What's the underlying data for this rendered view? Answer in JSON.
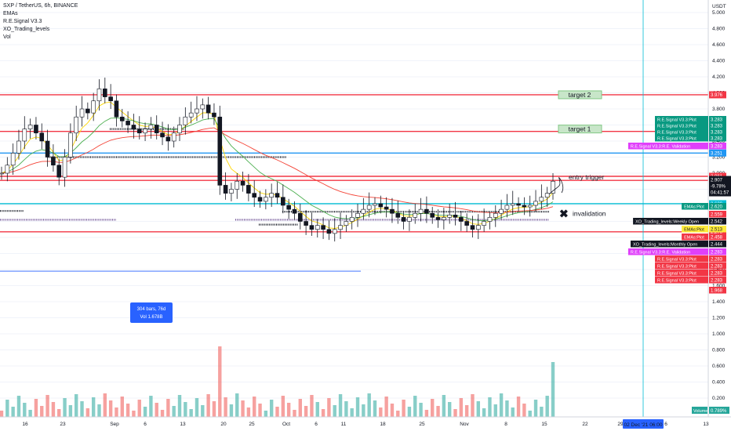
{
  "legend": {
    "title": "SXP / TetherUS, 6h, BINANCE",
    "indicators": [
      "EMAs",
      "R.E.Signal V3.3",
      "XO_Trading_levels",
      "Vol"
    ]
  },
  "currency": "USDT",
  "chart_data": {
    "type": "candlestick",
    "symbol": "SXP / TetherUS",
    "interval": "6h",
    "exchange": "BINANCE",
    "ylim": [
      0.0,
      5.1
    ],
    "y_ticks": [
      "5.000",
      "4.800",
      "4.600",
      "4.400",
      "4.200",
      "4.000",
      "3.800",
      "3.600",
      "3.400",
      "3.200",
      "3.000",
      "2.800",
      "2.600",
      "2.400",
      "2.200",
      "2.000",
      "1.800",
      "1.600",
      "1.400",
      "1.200",
      "1.000",
      "0.800",
      "0.600",
      "0.400",
      "0.200"
    ],
    "x_ticks": [
      "16",
      "23",
      "Sep",
      "6",
      "13",
      "20",
      "25",
      "Oct",
      "6",
      "11",
      "18",
      "25",
      "Nov",
      "8",
      "15",
      "22",
      "29",
      "6",
      "13"
    ],
    "last_price": {
      "value": "2.907",
      "change": "-9.78%",
      "countdown": "04:41:57"
    },
    "levels": [
      {
        "price": 3.976,
        "label": "3.976",
        "color": "#f23645",
        "kind": "target 2"
      },
      {
        "price": 3.52,
        "label": "3.520",
        "color": "#f23645"
      },
      {
        "price": 3.251,
        "label": "3.251",
        "color": "#2196f3"
      },
      {
        "price": 2.961,
        "label": "2.961",
        "color": "#f23645"
      },
      {
        "price": 2.91,
        "label": "2.910",
        "color": "#f23645"
      },
      {
        "price": 2.62,
        "label": "2.620",
        "color": "#00bcd4"
      },
      {
        "price": 2.27,
        "label": "2.270",
        "color": "#f23645"
      }
    ],
    "price_tags": [
      {
        "name": "R.E.Signal V3.3:Plot",
        "value": "3.283",
        "color": "#089981"
      },
      {
        "name": "R.E.Signal V3.3:Plot",
        "value": "3.283",
        "color": "#089981"
      },
      {
        "name": "R.E.Signal V3.3:Plot",
        "value": "3.283",
        "color": "#089981"
      },
      {
        "name": "R.E.Signal V3.3:Plot",
        "value": "3.283",
        "color": "#089981"
      },
      {
        "name": "R.E.Signal V3.3:R.E. Validation",
        "value": "3.283",
        "color": "#e040fb"
      },
      {
        "name": "EMAs:Plot",
        "value": "2.620",
        "color": "#089981"
      },
      {
        "name": "",
        "value": "2.559",
        "color": "#f23645"
      },
      {
        "name": "XO_Trading_levels:Weekly Open",
        "value": "2.542",
        "color": "#131722"
      },
      {
        "name": "EMAs:Plot",
        "value": "2.513",
        "color": "#ffeb3b"
      },
      {
        "name": "EMAs:Plot",
        "value": "2.458",
        "color": "#f23645"
      },
      {
        "name": "XO_Trading_levels:Monthly Open",
        "value": "2.444",
        "color": "#131722"
      },
      {
        "name": "R.E.Signal V3.3:R.E. Validation",
        "value": "2.283",
        "color": "#e040fb"
      },
      {
        "name": "R.E.Signal V3.3:Plot",
        "value": "2.283",
        "color": "#f23645"
      },
      {
        "name": "R.E.Signal V3.3:Plot",
        "value": "2.283",
        "color": "#f23645"
      },
      {
        "name": "R.E.Signal V3.3:Plot",
        "value": "2.283",
        "color": "#f23645"
      },
      {
        "name": "R.E.Signal V3.3:Plot",
        "value": "2.283",
        "color": "#f23645"
      },
      {
        "name": "",
        "value": "1.968",
        "color": "#f23645"
      }
    ],
    "annotations": [
      {
        "text": "target 2",
        "price": 3.976
      },
      {
        "text": "target 1",
        "price": 3.55
      },
      {
        "text": "entry trigger",
        "price": 2.92
      },
      {
        "text": "invalidation",
        "price": 2.5
      }
    ],
    "measure": {
      "bars": "304 bars, 76d",
      "volume": "Vol 1.678B"
    },
    "volume_label": "Volume",
    "volume_value": "0.789%",
    "crosshair_time": "02 Dec '21   06:00",
    "close_series": [
      3.0,
      3.1,
      3.25,
      3.4,
      3.55,
      3.6,
      3.5,
      3.4,
      3.2,
      3.1,
      2.95,
      3.2,
      3.5,
      3.7,
      3.8,
      3.75,
      3.9,
      4.05,
      3.95,
      3.9,
      3.7,
      3.65,
      3.6,
      3.55,
      3.5,
      3.55,
      3.6,
      3.5,
      3.45,
      3.4,
      3.5,
      3.6,
      3.7,
      3.75,
      3.8,
      3.85,
      3.75,
      3.7,
      2.85,
      2.75,
      2.8,
      2.9,
      2.85,
      2.75,
      2.7,
      2.65,
      2.7,
      2.75,
      2.7,
      2.6,
      2.55,
      2.5,
      2.4,
      2.35,
      2.3,
      2.35,
      2.3,
      2.25,
      2.3,
      2.35,
      2.4,
      2.45,
      2.5,
      2.55,
      2.6,
      2.62,
      2.58,
      2.55,
      2.5,
      2.45,
      2.4,
      2.45,
      2.5,
      2.55,
      2.5,
      2.45,
      2.42,
      2.45,
      2.48,
      2.45,
      2.4,
      2.35,
      2.3,
      2.35,
      2.4,
      2.45,
      2.5,
      2.55,
      2.6,
      2.62,
      2.6,
      2.58,
      2.6,
      2.65,
      2.7,
      2.75,
      2.9
    ]
  }
}
